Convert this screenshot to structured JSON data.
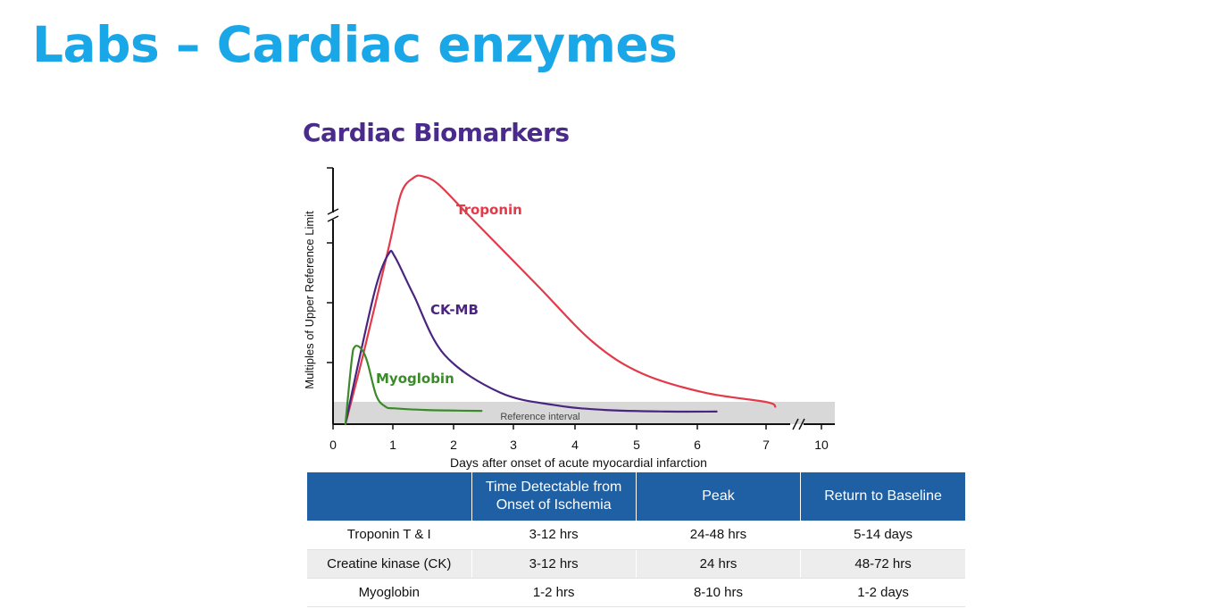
{
  "slide": {
    "title": "Labs – Cardiac enzymes"
  },
  "chart_heading": "Cardiac Biomarkers",
  "chart_data": {
    "type": "line",
    "title": "Cardiac Biomarkers",
    "xlabel": "Days after onset of acute myocardial infarction",
    "ylabel": "Multiples of Upper Reference Limit",
    "x_ticks": [
      "0",
      "1",
      "2",
      "3",
      "4",
      "5",
      "6",
      "7",
      "10"
    ],
    "x_axis_break_between": [
      "7",
      "10"
    ],
    "y_axis_break": true,
    "reference_band_label": "Reference interval",
    "grid": false,
    "colors": {
      "troponin": "#e23a4a",
      "ckmb": "#4a2580",
      "myoglobin": "#3a8a2a",
      "reference_band": "#d8d8d8"
    },
    "series": [
      {
        "name": "Troponin",
        "x": [
          0.2,
          0.5,
          0.9,
          1.1,
          1.3,
          1.45,
          1.7,
          2.2,
          3.3,
          4.2,
          5.0,
          6.0,
          7.0,
          7.5
        ],
        "y": [
          0.0,
          2.3,
          5.6,
          7.3,
          7.8,
          7.85,
          7.6,
          6.6,
          4.4,
          2.6,
          1.6,
          1.0,
          0.7,
          0.55
        ]
      },
      {
        "name": "CK-MB",
        "x": [
          0.2,
          0.45,
          0.7,
          0.9,
          1.0,
          1.3,
          1.8,
          2.7,
          3.6,
          4.4,
          5.4,
          6.2
        ],
        "y": [
          0.0,
          2.3,
          4.4,
          5.4,
          5.3,
          4.1,
          2.2,
          1.0,
          0.6,
          0.45,
          0.4,
          0.4
        ]
      },
      {
        "name": "Myoglobin",
        "x": [
          0.2,
          0.3,
          0.35,
          0.45,
          0.55,
          0.7,
          0.85,
          1.0,
          1.5,
          2.0,
          2.4
        ],
        "y": [
          0.0,
          2.0,
          2.45,
          2.4,
          2.0,
          0.9,
          0.55,
          0.5,
          0.45,
          0.43,
          0.42
        ]
      }
    ],
    "series_labels": [
      "Troponin",
      "CK-MB",
      "Myoglobin"
    ]
  },
  "table": {
    "headers": [
      "",
      "Time Detectable from Onset of Ischemia",
      "Peak",
      "Return to Baseline"
    ],
    "rows": [
      [
        "Troponin T & I",
        "3-12 hrs",
        "24-48 hrs",
        "5-14 days"
      ],
      [
        "Creatine kinase (CK)",
        "3-12 hrs",
        "24 hrs",
        "48-72 hrs"
      ],
      [
        "Myoglobin",
        "1-2 hrs",
        "8-10 hrs",
        "1-2 days"
      ]
    ]
  }
}
